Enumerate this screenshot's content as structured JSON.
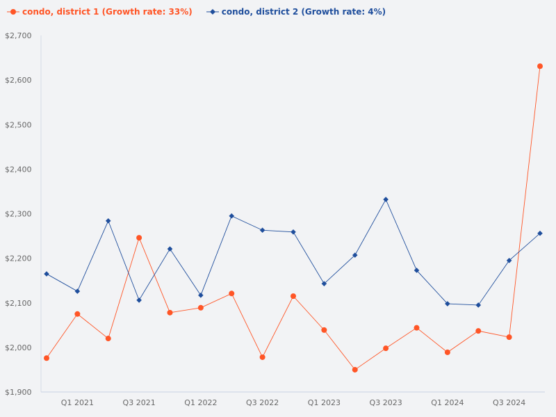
{
  "chart_data": {
    "type": "line",
    "title": "",
    "xlabel": "",
    "ylabel": "",
    "ylim": [
      1900,
      2700
    ],
    "y_ticks": [
      1900,
      2000,
      2100,
      2200,
      2300,
      2400,
      2500,
      2600,
      2700
    ],
    "y_tick_labels": [
      "$1,900",
      "$2,000",
      "$2,100",
      "$2,200",
      "$2,300",
      "$2,400",
      "$2,500",
      "$2,600",
      "$2,700"
    ],
    "categories": [
      "Q4 2020",
      "Q1 2021",
      "Q2 2021",
      "Q3 2021",
      "Q4 2021",
      "Q1 2022",
      "Q2 2022",
      "Q3 2022",
      "Q4 2022",
      "Q1 2023",
      "Q2 2023",
      "Q3 2023",
      "Q4 2023",
      "Q1 2024",
      "Q2 2024",
      "Q3 2024",
      "Q4 2024"
    ],
    "x_tick_labels": [
      "Q1 2021",
      "Q3 2021",
      "Q1 2022",
      "Q3 2022",
      "Q1 2023",
      "Q3 2023",
      "Q1 2024",
      "Q3 2024"
    ],
    "grid": false,
    "legend_position": "top-left",
    "series": [
      {
        "name": "condo, district 1 (Growth rate: 33%)",
        "color": "#ff5526",
        "marker": "circle",
        "values": [
          1976,
          2075,
          2020,
          2246,
          2078,
          2089,
          2121,
          1978,
          2115,
          2039,
          1950,
          1998,
          2044,
          1989,
          2037,
          2023,
          2631
        ]
      },
      {
        "name": "condo, district 2 (Growth rate: 4%)",
        "color": "#1f4e9c",
        "marker": "diamond",
        "values": [
          2165,
          2126,
          2284,
          2106,
          2221,
          2117,
          2295,
          2263,
          2259,
          2143,
          2207,
          2332,
          2173,
          2098,
          2095,
          2195,
          2256
        ]
      }
    ]
  }
}
